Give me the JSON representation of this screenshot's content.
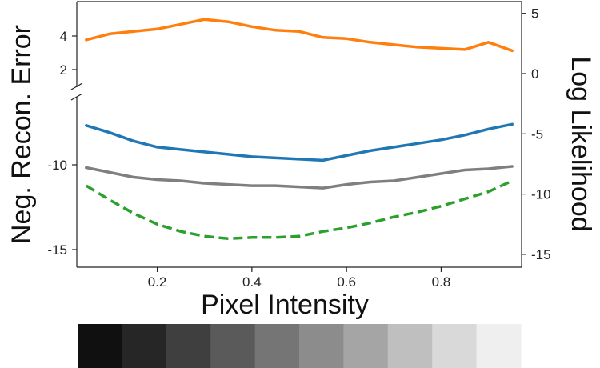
{
  "chart_data": {
    "type": "line",
    "title": "",
    "xlabel": "Pixel Intensity",
    "ylabel_left": "Neg. Recon. Error",
    "ylabel_right": "Log Likelihood",
    "xlim": [
      0.03,
      0.97
    ],
    "x_ticks": [
      "0.2",
      "0.4",
      "0.6",
      "0.8"
    ],
    "x_tick_values": [
      0.2,
      0.4,
      0.6,
      0.8
    ],
    "left_axis": {
      "broken": true,
      "upper_ticks": [
        "2",
        "4"
      ],
      "upper_tick_values": [
        2,
        4
      ],
      "lower_ticks": [
        "-10",
        "-15"
      ],
      "lower_tick_values": [
        -10,
        -15
      ]
    },
    "right_axis": {
      "ylim": [
        -15.5,
        6
      ],
      "ticks": [
        "5",
        "0",
        "-5",
        "-10",
        "-15"
      ],
      "tick_values": [
        5,
        0,
        -5,
        -10,
        -15
      ]
    },
    "grid": false,
    "series": [
      {
        "color": "#ff7f0e",
        "style": "solid",
        "axis": "right",
        "x": [
          0.05,
          0.1,
          0.15,
          0.2,
          0.25,
          0.3,
          0.35,
          0.4,
          0.45,
          0.5,
          0.55,
          0.6,
          0.65,
          0.7,
          0.75,
          0.8,
          0.85,
          0.9,
          0.95
        ],
        "y": [
          2.8,
          3.3,
          3.5,
          3.7,
          4.1,
          4.5,
          4.3,
          3.9,
          3.6,
          3.5,
          3.0,
          2.9,
          2.6,
          2.4,
          2.2,
          2.1,
          2.0,
          2.6,
          1.9
        ]
      },
      {
        "color": "#1f77b4",
        "style": "solid",
        "axis": "right",
        "x": [
          0.05,
          0.1,
          0.15,
          0.2,
          0.25,
          0.3,
          0.35,
          0.4,
          0.45,
          0.5,
          0.55,
          0.6,
          0.65,
          0.7,
          0.75,
          0.8,
          0.85,
          0.9,
          0.95
        ],
        "y": [
          -4.3,
          -4.9,
          -5.6,
          -6.1,
          -6.3,
          -6.5,
          -6.7,
          -6.9,
          -7.0,
          -7.1,
          -7.2,
          -6.8,
          -6.4,
          -6.1,
          -5.8,
          -5.5,
          -5.1,
          -4.6,
          -4.2
        ]
      },
      {
        "color": "#7f7f7f",
        "style": "solid",
        "axis": "right",
        "x": [
          0.05,
          0.1,
          0.15,
          0.2,
          0.25,
          0.3,
          0.35,
          0.4,
          0.45,
          0.5,
          0.55,
          0.6,
          0.65,
          0.7,
          0.75,
          0.8,
          0.85,
          0.9,
          0.95
        ],
        "y": [
          -7.8,
          -8.2,
          -8.6,
          -8.8,
          -8.9,
          -9.1,
          -9.2,
          -9.3,
          -9.3,
          -9.4,
          -9.5,
          -9.2,
          -9.0,
          -8.9,
          -8.6,
          -8.3,
          -8.0,
          -7.9,
          -7.7
        ]
      },
      {
        "color": "#2ca02c",
        "style": "dashed",
        "axis": "right",
        "x": [
          0.05,
          0.1,
          0.15,
          0.2,
          0.25,
          0.3,
          0.35,
          0.4,
          0.45,
          0.5,
          0.55,
          0.6,
          0.65,
          0.7,
          0.75,
          0.8,
          0.85,
          0.9,
          0.95
        ],
        "y": [
          -9.3,
          -10.5,
          -11.6,
          -12.5,
          -13.1,
          -13.5,
          -13.7,
          -13.6,
          -13.6,
          -13.5,
          -13.1,
          -12.8,
          -12.4,
          -11.9,
          -11.5,
          -11.0,
          -10.4,
          -9.8,
          -8.9
        ]
      }
    ],
    "colorbar": {
      "type": "grayscale-gradient",
      "steps": [
        "#101010",
        "#262626",
        "#3f3f3f",
        "#5a5a5a",
        "#757575",
        "#8c8c8c",
        "#a5a5a5",
        "#bfbfbf",
        "#d9d9d9",
        "#efefef"
      ]
    }
  }
}
